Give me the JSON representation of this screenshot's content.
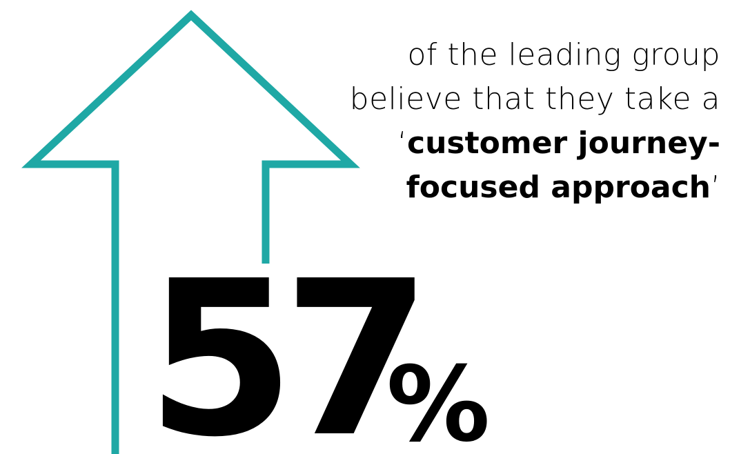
{
  "statistic": {
    "number": "57",
    "unit": "%"
  },
  "caption": {
    "line1": "of the leading group",
    "line2": "believe that they take a",
    "open_quote": "‘",
    "bold_line3": "customer journey-",
    "bold_line4": "focused approach",
    "close_quote": "’"
  },
  "colors": {
    "arrow": "#1fa8a5",
    "text": "#000000",
    "background": "#ffffff"
  },
  "icons": {
    "arrow": "up-arrow-outline-icon"
  }
}
